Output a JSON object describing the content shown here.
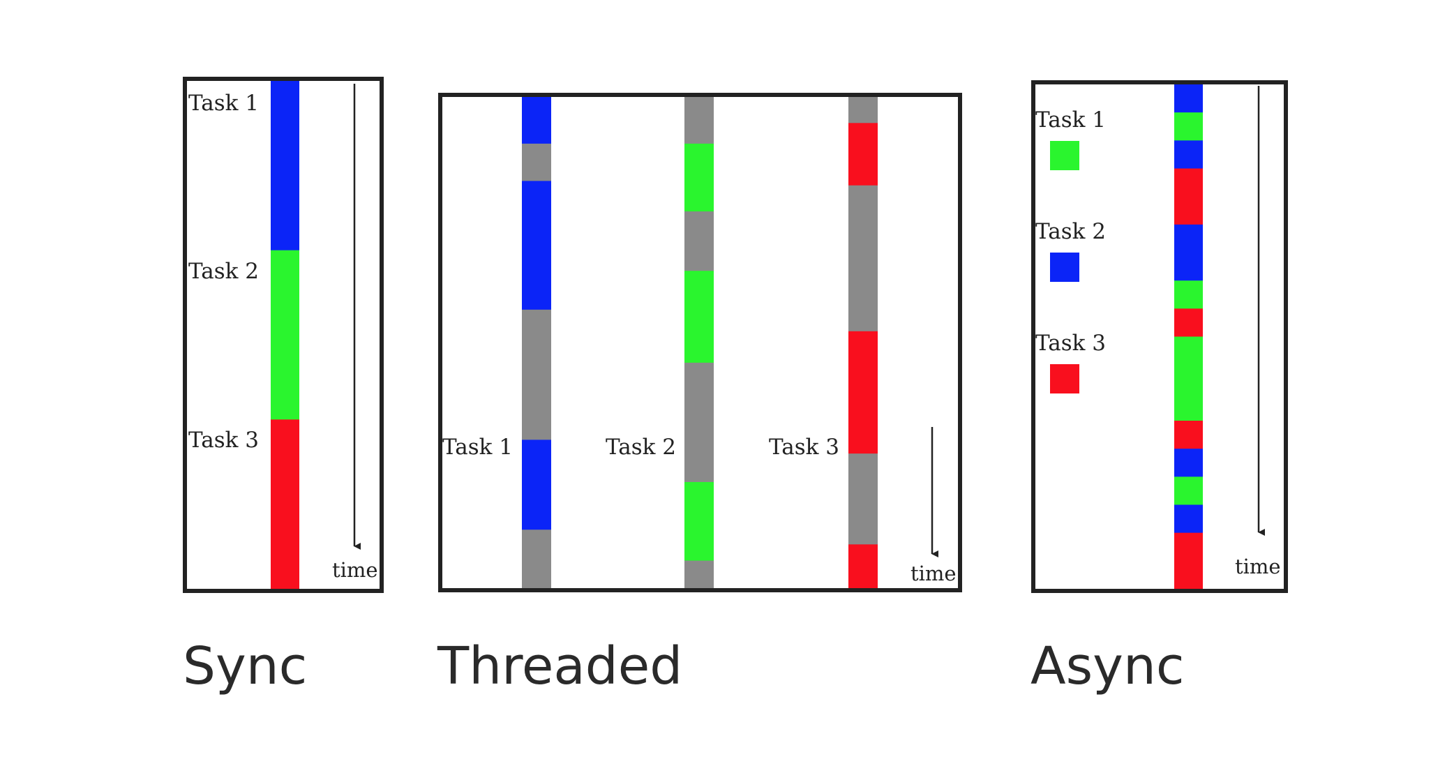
{
  "colors": {
    "task1_sync_threaded": "#0b24f7",
    "task2_sync_threaded": "#2af52e",
    "task3": "#f90f1e",
    "waiting": "#8a8a8a",
    "async_task1": "#2af52e",
    "async_task2": "#0b24f7",
    "async_task3": "#f90f1e",
    "frame": "#222222",
    "text": "#222222"
  },
  "sync": {
    "caption": "Sync",
    "time_label": "time",
    "tasks": [
      {
        "label": "Task 1",
        "color": "task1_sync_threaded"
      },
      {
        "label": "Task 2",
        "color": "task2_sync_threaded"
      },
      {
        "label": "Task 3",
        "color": "task3"
      }
    ],
    "timeline": [
      {
        "task": 1,
        "duration": 1
      },
      {
        "task": 2,
        "duration": 1
      },
      {
        "task": 3,
        "duration": 1
      }
    ]
  },
  "threaded": {
    "caption": "Threaded",
    "time_label": "time",
    "threads": [
      {
        "label": "Task 1",
        "segments": [
          {
            "state": "task1_sync_threaded",
            "duration": 0.095
          },
          {
            "state": "waiting",
            "duration": 0.076
          },
          {
            "state": "task1_sync_threaded",
            "duration": 0.262
          },
          {
            "state": "waiting",
            "duration": 0.265
          },
          {
            "state": "task1_sync_threaded",
            "duration": 0.183
          },
          {
            "state": "waiting",
            "duration": 0.119
          }
        ]
      },
      {
        "label": "Task 2",
        "segments": [
          {
            "state": "waiting",
            "duration": 0.095
          },
          {
            "state": "task2_sync_threaded",
            "duration": 0.138
          },
          {
            "state": "waiting",
            "duration": 0.121
          },
          {
            "state": "task2_sync_threaded",
            "duration": 0.187
          },
          {
            "state": "waiting",
            "duration": 0.243
          },
          {
            "state": "task2_sync_threaded",
            "duration": 0.16
          },
          {
            "state": "waiting",
            "duration": 0.056
          }
        ]
      },
      {
        "label": "Task 3",
        "segments": [
          {
            "state": "waiting",
            "duration": 0.053
          },
          {
            "state": "task3",
            "duration": 0.127
          },
          {
            "state": "waiting",
            "duration": 0.297
          },
          {
            "state": "task3",
            "duration": 0.249
          },
          {
            "state": "waiting",
            "duration": 0.185
          },
          {
            "state": "task3",
            "duration": 0.089
          }
        ]
      }
    ]
  },
  "async": {
    "caption": "Async",
    "time_label": "time",
    "legend": [
      {
        "label": "Task 1",
        "color": "async_task1"
      },
      {
        "label": "Task 2",
        "color": "async_task2"
      },
      {
        "label": "Task 3",
        "color": "async_task3"
      }
    ],
    "timeline": [
      {
        "task": 2,
        "duration": 0.055
      },
      {
        "task": 1,
        "duration": 0.055
      },
      {
        "task": 2,
        "duration": 0.055
      },
      {
        "task": 3,
        "duration": 0.11
      },
      {
        "task": 2,
        "duration": 0.11
      },
      {
        "task": 1,
        "duration": 0.055
      },
      {
        "task": 3,
        "duration": 0.055
      },
      {
        "task": 1,
        "duration": 0.165
      },
      {
        "task": 3,
        "duration": 0.055
      },
      {
        "task": 2,
        "duration": 0.055
      },
      {
        "task": 1,
        "duration": 0.055
      },
      {
        "task": 2,
        "duration": 0.055
      },
      {
        "task": 3,
        "duration": 0.11
      }
    ]
  }
}
